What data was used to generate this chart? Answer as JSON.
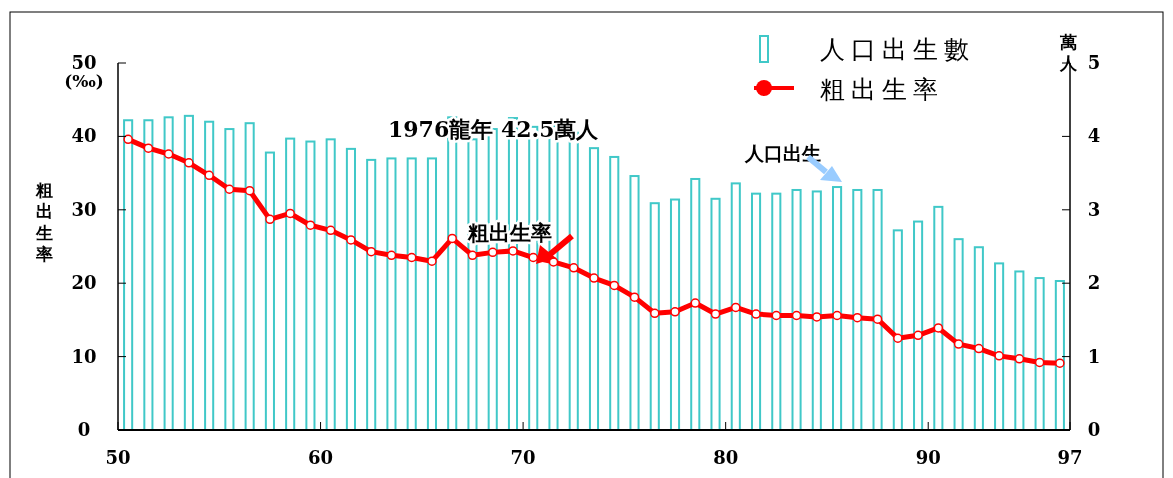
{
  "chart_data": {
    "type": "bar",
    "x": [
      50.5,
      51.5,
      52.5,
      53.5,
      54.5,
      55.5,
      56.5,
      57.5,
      58.5,
      59.5,
      60.5,
      61.5,
      62.5,
      63.5,
      64.5,
      65.5,
      66.5,
      67.5,
      68.5,
      69.5,
      70.5,
      71.5,
      72.5,
      73.5,
      74.5,
      75.5,
      76.5,
      77.5,
      78.5,
      79.5,
      80.5,
      81.5,
      82.5,
      83.5,
      84.5,
      85.5,
      86.5,
      87.5,
      88.5,
      89.5,
      90.5,
      91.5,
      92.5,
      93.5,
      94.5,
      95.5,
      96.5
    ],
    "xlim": [
      50,
      97
    ],
    "xticks": [
      50,
      60,
      70,
      80,
      90,
      97
    ],
    "ylabel": "粗出生率",
    "y2label": "萬人",
    "ylim": [
      0,
      50
    ],
    "yticks": [
      0,
      10,
      20,
      30,
      40,
      50
    ],
    "y2lim": [
      0,
      5
    ],
    "y2ticks": [
      0,
      1,
      2,
      3,
      4,
      5
    ],
    "legend": "top right",
    "series": [
      {
        "name": "人口出生數",
        "axis": "y2",
        "color": "#40c8c8",
        "values": [
          4.22,
          4.22,
          4.26,
          4.28,
          4.2,
          4.1,
          4.18,
          3.78,
          3.97,
          3.93,
          3.96,
          3.83,
          3.68,
          3.7,
          3.7,
          3.7,
          4.26,
          3.96,
          4.1,
          4.25,
          4.13,
          4.14,
          4.05,
          3.84,
          3.72,
          3.46,
          3.09,
          3.14,
          3.42,
          3.15,
          3.36,
          3.22,
          3.22,
          3.27,
          3.25,
          3.31,
          3.27,
          3.27,
          2.72,
          2.84,
          3.04,
          2.6,
          2.49,
          2.27,
          2.16,
          2.07,
          2.03
        ]
      },
      {
        "name": "粗出生率",
        "type": "line",
        "color": "#ff0000",
        "marker": "circle",
        "values": [
          39.6,
          38.4,
          37.6,
          36.4,
          34.7,
          32.8,
          32.6,
          28.7,
          29.5,
          27.9,
          27.2,
          25.9,
          24.3,
          23.8,
          23.5,
          23.0,
          26.1,
          23.8,
          24.2,
          24.4,
          23.5,
          22.9,
          22.1,
          20.7,
          19.7,
          18.1,
          15.9,
          16.1,
          17.3,
          15.8,
          16.7,
          15.8,
          15.6,
          15.6,
          15.4,
          15.6,
          15.3,
          15.1,
          12.5,
          12.9,
          13.9,
          11.7,
          11.1,
          10.1,
          9.7,
          9.2,
          9.1
        ]
      }
    ],
    "annotations": [
      "(‰)",
      "1976龍年  42.5萬人",
      "粗出生率",
      "人口出生"
    ]
  }
}
